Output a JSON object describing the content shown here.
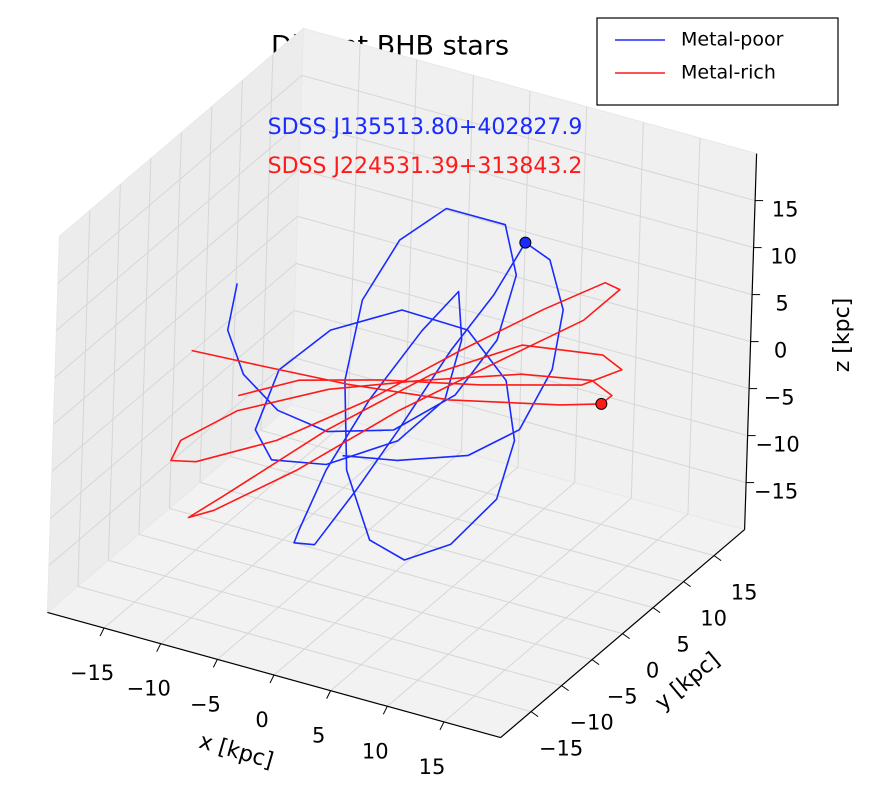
{
  "chart_data": {
    "type": "line",
    "projection": "3d",
    "title": "Distant BHB stars",
    "xlabel": "x [kpc]",
    "ylabel": "y [kpc]",
    "zlabel": "z [kpc]",
    "xlim": [
      -20,
      20
    ],
    "ylim": [
      -20,
      20
    ],
    "zlim": [
      -20,
      20
    ],
    "xticks": [
      {
        "value": -15,
        "label": "−15"
      },
      {
        "value": -10,
        "label": "−10"
      },
      {
        "value": -5,
        "label": "−5"
      },
      0,
      5,
      10,
      15
    ],
    "yticks": [
      {
        "value": -15,
        "label": "−15"
      },
      {
        "value": -10,
        "label": "−10"
      },
      {
        "value": -5,
        "label": "−5"
      },
      0,
      5,
      10,
      15
    ],
    "zticks": [
      {
        "value": -15,
        "label": "−15"
      },
      {
        "value": -10,
        "label": "−10"
      },
      {
        "value": -5,
        "label": "−5"
      },
      0,
      5,
      10,
      15
    ],
    "grid": true,
    "legend": "upper right",
    "annotations": [
      {
        "text": "SDSS J135513.80+402827.9",
        "color": "#1a2bff"
      },
      {
        "text": "SDSS J224531.39+313843.2",
        "color": "#ff1a1a"
      }
    ],
    "series": [
      {
        "name": "Metal-poor",
        "color": "#1a2bff",
        "x": [
          -14.7,
          -15.4,
          -13.9,
          -10.8,
          -6.4,
          -0.6,
          4.7,
          8.2,
          9.7,
          8.6,
          3.4,
          -0.6,
          -3.7,
          -5.0,
          -4.6,
          -2.4,
          0.7,
          4.7,
          8.6,
          10.0,
          9.1,
          5.6,
          -0.2,
          -6.4,
          -10.8,
          -12.7,
          -11.2,
          -6.4,
          -0.2,
          3.8,
          5.1,
          4.7,
          1.6,
          -2.8,
          -6.4,
          -8.6,
          -9.0,
          -7.2,
          -3.7,
          -0.2,
          4.2,
          7.8,
          10.4,
          12.6,
          13.9,
          13.1,
          10.4,
          6.0,
          -0.2,
          -5.0
        ],
        "y": [
          0,
          0,
          0,
          0,
          0,
          0,
          0,
          0,
          0,
          0,
          0,
          0,
          0,
          0,
          0,
          0,
          0,
          0,
          0,
          0,
          0,
          0,
          0,
          0,
          0,
          0,
          0,
          0,
          0,
          0,
          0,
          0,
          0,
          0,
          0,
          0,
          0,
          0,
          0,
          0,
          0,
          0,
          0,
          0,
          0,
          0,
          0,
          0,
          0,
          0
        ],
        "z": [
          5.7,
          0.5,
          -3.7,
          -6.5,
          -7.3,
          -5.2,
          0.3,
          7.3,
          14.7,
          19.7,
          19.7,
          15.0,
          7.6,
          -1.4,
          -10.8,
          -17.5,
          -18.6,
          -15.6,
          -9.5,
          -2.8,
          3.3,
          7.5,
          7.7,
          3.5,
          -2.2,
          -9.2,
          -11.9,
          -10.8,
          -6.2,
          -0.5,
          6.3,
          11.3,
          6.1,
          -2.7,
          -11.4,
          -18.5,
          -20.0,
          -19.6,
          -12.6,
          -5.1,
          4.9,
          12.0,
          18.4,
          17.3,
          12.4,
          5.8,
          -1.5,
          -5.7,
          -8.3,
          -9.4
        ],
        "position": {
          "x": 10.4,
          "y": 0,
          "z": 18.4
        }
      },
      {
        "name": "Metal-rich",
        "color": "#ff1a1a",
        "x": [
          -18.5,
          -12.5,
          -4.6,
          4.2,
          13.9,
          17.5,
          18.4,
          16.6,
          10.4,
          1.6,
          -6.4,
          -14.3,
          -19.2,
          -20.0,
          -17.8,
          -10.8,
          -2.8,
          5.1,
          12.2,
          17.5,
          18.8,
          15.7,
          8.6,
          -0.2,
          -9.0,
          -16.1,
          -18.3,
          -15.2,
          -6.4,
          2.5,
          10.4,
          17.5,
          19.2,
          15.7,
          6.9,
          -1.9,
          -9.0,
          -14.3
        ],
        "y": [
          0,
          0,
          0,
          0,
          0,
          0,
          0,
          0,
          0,
          0,
          0,
          0,
          0,
          0,
          0,
          0,
          0,
          0,
          0,
          0,
          0,
          0,
          0,
          0,
          0,
          0,
          0,
          0,
          0,
          0,
          0,
          0,
          0,
          0,
          0,
          0,
          0,
          0
        ],
        "z": [
          -2.7,
          -2.3,
          -1.7,
          -0.4,
          2.3,
          3.6,
          4.8,
          5.8,
          4.4,
          0.8,
          -2.8,
          -7.7,
          -12.5,
          -14.9,
          -14.3,
          -9.7,
          -2.7,
          5.2,
          11.9,
          16.5,
          16.2,
          11.9,
          5.3,
          -3.0,
          -12.3,
          -18.9,
          -20.4,
          -17.0,
          -7.1,
          1.7,
          7.5,
          8.8,
          7.8,
          5.0,
          2.1,
          -0.3,
          -2.7,
          -6.1
        ],
        "position": {
          "x": 17.5,
          "y": 0,
          "z": 3.6
        }
      }
    ]
  }
}
